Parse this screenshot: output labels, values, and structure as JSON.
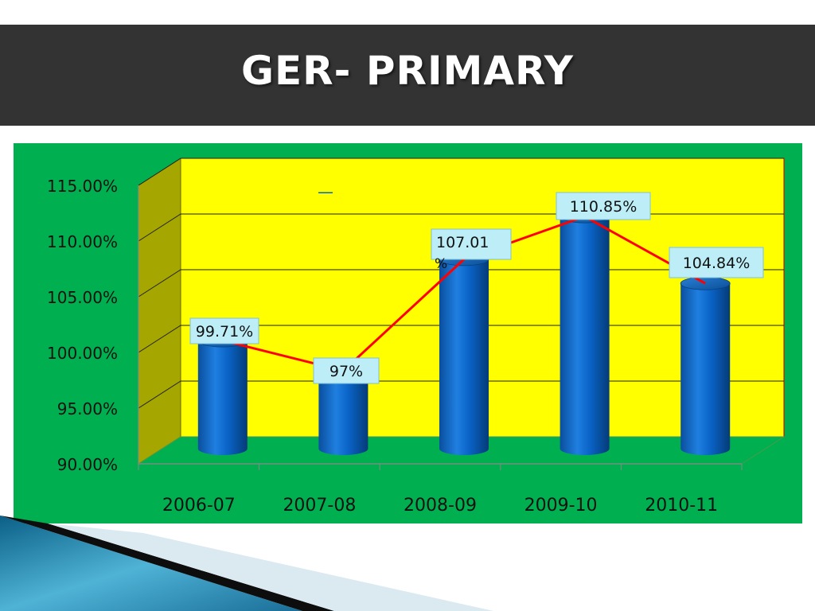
{
  "slide": {
    "title": "GER- PRIMARY"
  },
  "colors": {
    "title_bar": "#333333",
    "panel": "#00b050",
    "plot_back_wall": "#ffff00",
    "plot_side_wall": "#a6a600",
    "floor": "#00b050",
    "bar": "#0066cc",
    "trend_line": "#ff0000",
    "label_box": "#bdeef7"
  },
  "chart_data": {
    "type": "bar",
    "categories": [
      "2006-07",
      "2007-08",
      "2008-09",
      "2009-10",
      "2010-11"
    ],
    "values": [
      99.71,
      97,
      107.01,
      110.85,
      104.84
    ],
    "data_labels": [
      "99.71%",
      "97%",
      "107.01\n%",
      "110.85%",
      "104.84%"
    ],
    "ylim": [
      90,
      115
    ],
    "yticks": [
      "90.00%",
      "95.00%",
      "100.00%",
      "105.00%",
      "110.00%",
      "115.00%"
    ],
    "ytick_values": [
      90,
      95,
      100,
      105,
      110,
      115
    ],
    "grid": true,
    "trend_line": true,
    "bar_style": "3d-cylinder",
    "legend_marker": "—"
  }
}
